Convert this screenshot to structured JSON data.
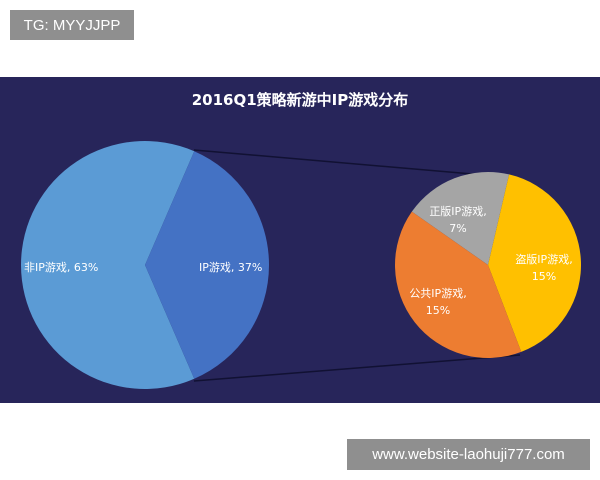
{
  "watermark_top": "TG: MYYJJPP",
  "watermark_bottom": "www.website-laohuji777.com",
  "colors": {
    "background": "#27255a",
    "non_ip": "#5b9bd5",
    "ip": "#4472c4",
    "genuine_ip": "#a5a5a5",
    "pirated_ip": "#ffc000",
    "public_ip": "#ed7d31"
  },
  "chart_data": [
    {
      "type": "pie",
      "title": "2016Q1策略新游中IP游戏分布",
      "slices": [
        {
          "label": "非IP游戏, 63%",
          "value": 63
        },
        {
          "label": "IP游戏, 37%",
          "value": 37
        }
      ]
    },
    {
      "type": "pie",
      "title": "",
      "slices": [
        {
          "label": "正版IP游戏,",
          "value_label": "7%",
          "value": 7
        },
        {
          "label": "盗版IP游戏,",
          "value_label": "15%",
          "value": 15
        },
        {
          "label": "公共IP游戏,",
          "value_label": "15%",
          "value": 15
        }
      ]
    }
  ]
}
